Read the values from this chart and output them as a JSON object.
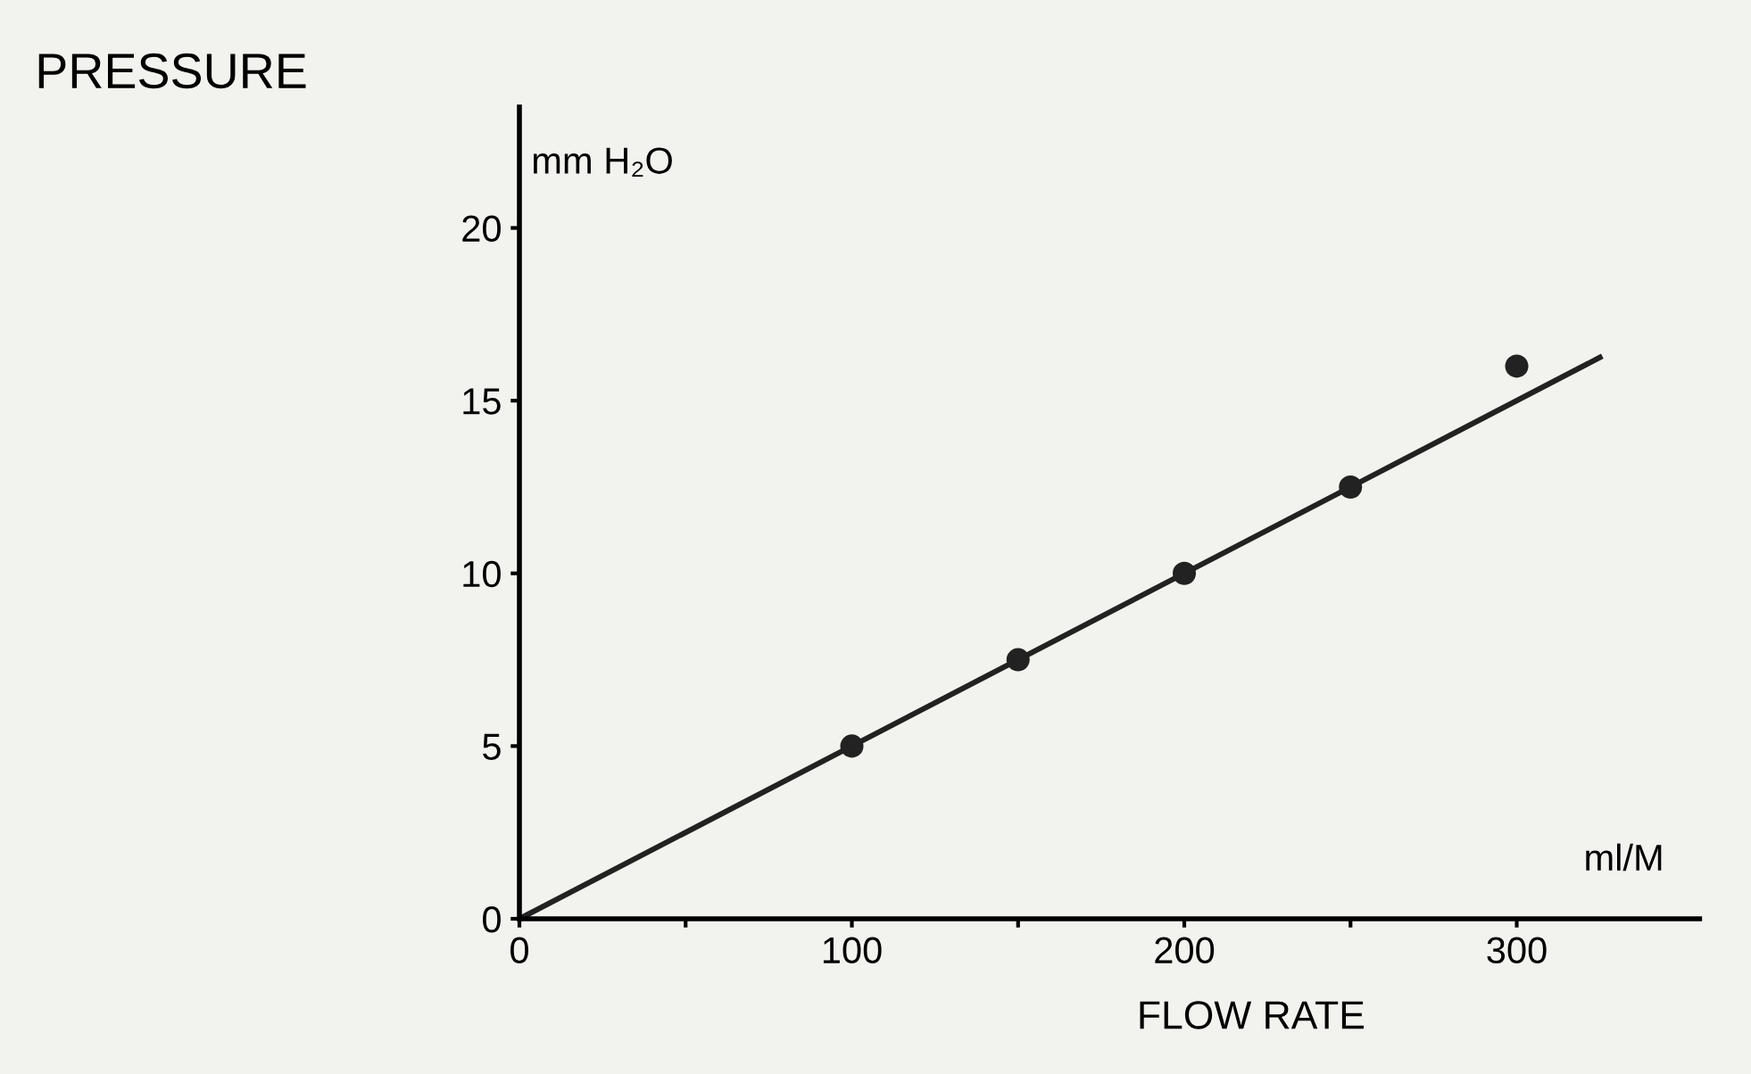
{
  "chart_data": {
    "type": "scatter",
    "ylabel": "PRESSURE",
    "xlabel": "FLOW RATE",
    "annotations": [
      "mm H₂O",
      "ml/M"
    ],
    "x": [
      100,
      150,
      200,
      250,
      300
    ],
    "series": [
      {
        "color": "#222222",
        "values": [
          5,
          7.5,
          10,
          12.5,
          16
        ],
        "marker": "circle"
      },
      {
        "type": "line",
        "color": "#222222",
        "x": [
          0,
          325
        ],
        "values": [
          0,
          16.25
        ],
        "line_style": "solid",
        "marker": "none"
      }
    ],
    "xlim": [
      0,
      355
    ],
    "ylim": [
      0,
      23.5
    ],
    "xticks": [
      0,
      {
        "value": 50,
        "label": null
      },
      100,
      {
        "value": 150,
        "label": null
      },
      200,
      {
        "value": 250,
        "label": null
      },
      300
    ],
    "yticks": [
      0,
      5,
      10,
      15,
      20
    ],
    "grid": false,
    "legend": false
  }
}
